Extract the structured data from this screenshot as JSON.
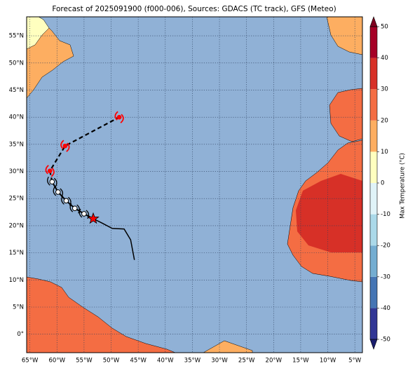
{
  "map": {
    "title": "Forecast of 2025091900 (f000-006), Sources: GDACS (TC track), GFS (Meteo)",
    "lon_lim": [
      -65.6,
      -3.6
    ],
    "lat_lim": [
      -3.4,
      58.5
    ],
    "lon_ticks": [
      {
        "value": -65,
        "label": "65°W"
      },
      {
        "value": -60,
        "label": "60°W"
      },
      {
        "value": -55,
        "label": "55°W"
      },
      {
        "value": -50,
        "label": "50°W"
      },
      {
        "value": -45,
        "label": "45°W"
      },
      {
        "value": -40,
        "label": "40°W"
      },
      {
        "value": -35,
        "label": "35°W"
      },
      {
        "value": -30,
        "label": "30°W"
      },
      {
        "value": -25,
        "label": "25°W"
      },
      {
        "value": -20,
        "label": "20°W"
      },
      {
        "value": -15,
        "label": "15°W"
      },
      {
        "value": -10,
        "label": "10°W"
      },
      {
        "value": -5,
        "label": "5°W"
      }
    ],
    "lat_ticks": [
      {
        "value": 0,
        "label": "0°"
      },
      {
        "value": 5,
        "label": "5°N"
      },
      {
        "value": 10,
        "label": "10°N"
      },
      {
        "value": 15,
        "label": "15°N"
      },
      {
        "value": 20,
        "label": "20°N"
      },
      {
        "value": 25,
        "label": "25°N"
      },
      {
        "value": 30,
        "label": "30°N"
      },
      {
        "value": 35,
        "label": "35°N"
      },
      {
        "value": 40,
        "label": "40°N"
      },
      {
        "value": 45,
        "label": "45°N"
      },
      {
        "value": 50,
        "label": "50°N"
      },
      {
        "value": 55,
        "label": "55°N"
      }
    ],
    "grid": true,
    "colorbar": {
      "label": "Max Temperature (°C)",
      "lim": [
        -50,
        50
      ],
      "ticks": [
        -50,
        -40,
        -30,
        -20,
        -10,
        0,
        10,
        20,
        30,
        40,
        50
      ],
      "colors": [
        "#313695",
        "#4575b4",
        "#74add1",
        "#abd9e9",
        "#e0f3f8",
        "#ffffbf",
        "#fdae61",
        "#f46d43",
        "#d73027",
        "#a50026"
      ],
      "under": "#1b1f6e",
      "over": "#7f0020"
    },
    "track": {
      "observed": {
        "lon": [
          -45.7,
          -46.4,
          -47.6,
          -49.8,
          -51.7,
          -53.3
        ],
        "lat": [
          13.7,
          17.4,
          19.4,
          19.5,
          20.5,
          21.3
        ]
      },
      "forecast": {
        "lon": [
          -55.0,
          -56.7,
          -58.3,
          -59.8,
          -60.9,
          -61.3,
          -58.5,
          -48.5
        ],
        "lat": [
          22.2,
          23.2,
          24.6,
          26.2,
          28.1,
          30.1,
          34.7,
          40.0
        ],
        "fill": [
          "white",
          "white",
          "white",
          "white",
          "white",
          "red",
          "red",
          "red"
        ]
      }
    }
  }
}
